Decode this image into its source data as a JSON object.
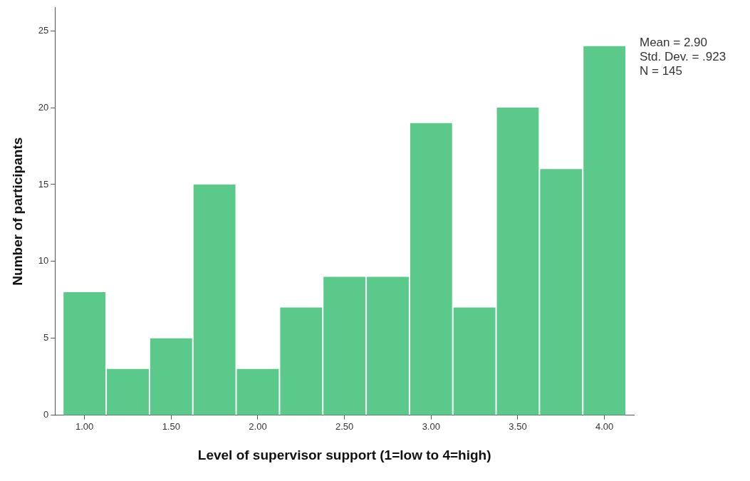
{
  "chart_data": {
    "type": "histogram",
    "xlabel": "Level of supervisor support (1=low to 4=high)",
    "ylabel": "Number of participants",
    "bins": [
      0.875,
      1.125,
      1.375,
      1.625,
      1.875,
      2.125,
      2.375,
      2.625,
      2.875,
      3.125,
      3.375,
      3.625,
      3.875,
      4.125
    ],
    "values": [
      8,
      3,
      5,
      15,
      3,
      7,
      9,
      9,
      19,
      7,
      20,
      16,
      24
    ],
    "color": "#5bc98a",
    "xlim": [
      0.83,
      4.17
    ],
    "xticks": [
      {
        "value": 1,
        "label": "1.00"
      },
      {
        "value": 1.5,
        "label": "1.50"
      },
      {
        "value": 2,
        "label": "2.00"
      },
      {
        "value": 2.5,
        "label": "2.50"
      },
      {
        "value": 3,
        "label": "3.00"
      },
      {
        "value": 3.5,
        "label": "3.50"
      },
      {
        "value": 4,
        "label": "4.00"
      }
    ],
    "ylim": [
      0,
      26.5
    ],
    "yticks": [
      0,
      5,
      10,
      15,
      20,
      25
    ],
    "grid": false,
    "annotations": [
      "Mean = 2.90",
      "Std. Dev. = .923",
      "N = 145"
    ]
  }
}
